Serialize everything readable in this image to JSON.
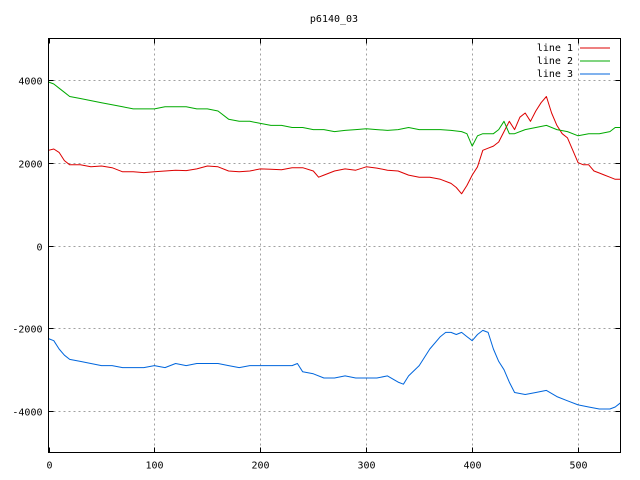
{
  "chart_data": {
    "type": "line",
    "title": "p6140_03",
    "xlabel": "",
    "ylabel": "",
    "xlim": [
      0,
      540
    ],
    "ylim": [
      -5000,
      5000
    ],
    "xticks": [
      0,
      100,
      200,
      300,
      400,
      500
    ],
    "yticks": [
      -4000,
      -2000,
      0,
      2000,
      4000
    ],
    "grid": true,
    "legend_position": "top-right",
    "series": [
      {
        "name": "line 1",
        "color": "#dd0000",
        "x": [
          0,
          5,
          10,
          15,
          20,
          30,
          40,
          50,
          60,
          70,
          80,
          90,
          100,
          110,
          120,
          130,
          140,
          150,
          160,
          170,
          180,
          190,
          200,
          210,
          220,
          230,
          240,
          250,
          255,
          260,
          270,
          280,
          290,
          300,
          310,
          320,
          330,
          340,
          350,
          360,
          370,
          380,
          385,
          390,
          395,
          400,
          405,
          410,
          415,
          420,
          425,
          430,
          435,
          440,
          445,
          450,
          455,
          460,
          465,
          470,
          475,
          480,
          485,
          490,
          495,
          500,
          505,
          510,
          515,
          520,
          525,
          530,
          535,
          540
        ],
        "values": [
          2300,
          2330,
          2250,
          2050,
          1950,
          1950,
          1900,
          1920,
          1880,
          1780,
          1780,
          1760,
          1780,
          1800,
          1820,
          1810,
          1850,
          1920,
          1900,
          1800,
          1780,
          1800,
          1850,
          1840,
          1830,
          1880,
          1880,
          1800,
          1650,
          1700,
          1800,
          1850,
          1820,
          1900,
          1870,
          1820,
          1800,
          1700,
          1650,
          1650,
          1600,
          1500,
          1400,
          1250,
          1450,
          1700,
          1900,
          2300,
          2350,
          2400,
          2500,
          2750,
          3000,
          2800,
          3100,
          3200,
          3000,
          3250,
          3450,
          3600,
          3200,
          2900,
          2700,
          2600,
          2300,
          2000,
          1950,
          1950,
          1800,
          1750,
          1700,
          1650,
          1600,
          1600
        ]
      },
      {
        "name": "line 2",
        "color": "#00aa00",
        "x": [
          0,
          5,
          10,
          15,
          20,
          30,
          40,
          50,
          60,
          70,
          80,
          90,
          100,
          110,
          120,
          130,
          140,
          150,
          160,
          170,
          180,
          190,
          200,
          210,
          220,
          230,
          240,
          250,
          260,
          270,
          280,
          290,
          300,
          310,
          320,
          330,
          340,
          350,
          360,
          370,
          380,
          390,
          395,
          400,
          405,
          410,
          420,
          425,
          430,
          435,
          440,
          450,
          460,
          470,
          480,
          490,
          500,
          510,
          520,
          530,
          535,
          540
        ],
        "values": [
          3950,
          3900,
          3800,
          3700,
          3600,
          3550,
          3500,
          3450,
          3400,
          3350,
          3300,
          3300,
          3300,
          3350,
          3350,
          3350,
          3300,
          3300,
          3250,
          3050,
          3000,
          3000,
          2950,
          2900,
          2900,
          2850,
          2850,
          2800,
          2800,
          2750,
          2780,
          2800,
          2820,
          2800,
          2780,
          2800,
          2850,
          2800,
          2800,
          2800,
          2780,
          2750,
          2700,
          2400,
          2650,
          2700,
          2700,
          2800,
          3000,
          2700,
          2700,
          2800,
          2850,
          2900,
          2800,
          2750,
          2650,
          2700,
          2700,
          2750,
          2850,
          2850
        ]
      },
      {
        "name": "line 3",
        "color": "#0066dd",
        "x": [
          0,
          5,
          10,
          15,
          20,
          30,
          40,
          50,
          60,
          70,
          80,
          90,
          100,
          110,
          120,
          130,
          140,
          150,
          160,
          170,
          180,
          190,
          200,
          210,
          220,
          230,
          235,
          240,
          250,
          260,
          270,
          280,
          290,
          300,
          310,
          320,
          330,
          335,
          340,
          350,
          360,
          370,
          375,
          380,
          385,
          390,
          395,
          400,
          405,
          410,
          415,
          420,
          425,
          430,
          435,
          440,
          450,
          460,
          470,
          480,
          490,
          500,
          510,
          520,
          530,
          535,
          540
        ],
        "values": [
          -2250,
          -2300,
          -2500,
          -2650,
          -2750,
          -2800,
          -2850,
          -2900,
          -2900,
          -2950,
          -2950,
          -2950,
          -2900,
          -2950,
          -2850,
          -2900,
          -2850,
          -2850,
          -2850,
          -2900,
          -2950,
          -2900,
          -2900,
          -2900,
          -2900,
          -2900,
          -2850,
          -3050,
          -3100,
          -3200,
          -3200,
          -3150,
          -3200,
          -3200,
          -3200,
          -3150,
          -3300,
          -3350,
          -3150,
          -2900,
          -2500,
          -2200,
          -2100,
          -2100,
          -2150,
          -2100,
          -2200,
          -2300,
          -2150,
          -2050,
          -2100,
          -2500,
          -2800,
          -3000,
          -3300,
          -3550,
          -3600,
          -3550,
          -3500,
          -3650,
          -3750,
          -3850,
          -3900,
          -3950,
          -3950,
          -3900,
          -3800
        ]
      }
    ]
  }
}
